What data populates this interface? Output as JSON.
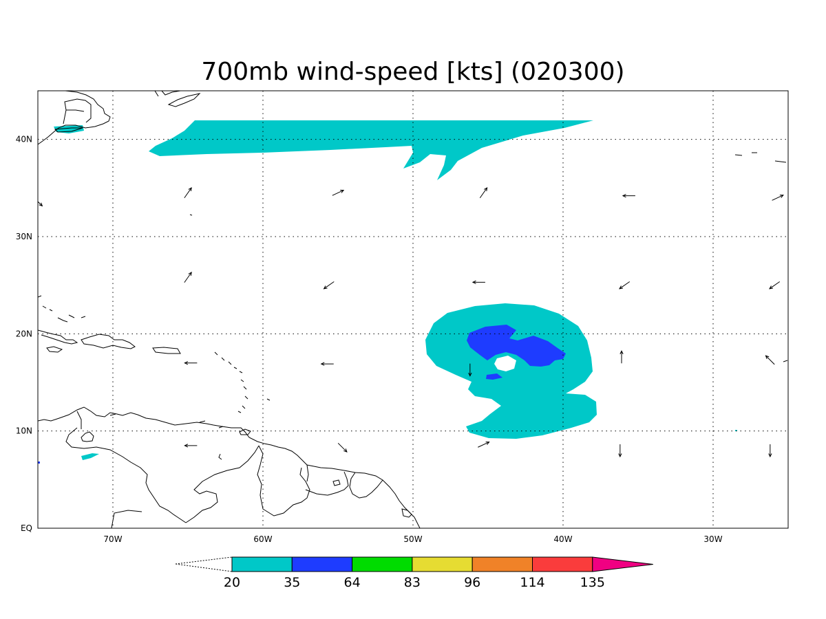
{
  "title": "700mb wind-speed [kts] (020300)",
  "map": {
    "lon_range": [
      -75,
      -25
    ],
    "lat_range": [
      0,
      45
    ],
    "lon_ticks": [
      {
        "value": -70,
        "label": "70W"
      },
      {
        "value": -60,
        "label": "60W"
      },
      {
        "value": -50,
        "label": "50W"
      },
      {
        "value": -40,
        "label": "40W"
      },
      {
        "value": -30,
        "label": "30W"
      }
    ],
    "lat_ticks": [
      {
        "value": 0,
        "label": "EQ"
      },
      {
        "value": 10,
        "label": "10N"
      },
      {
        "value": 20,
        "label": "20N"
      },
      {
        "value": 30,
        "label": "30N"
      },
      {
        "value": 40,
        "label": "40N"
      }
    ],
    "grid": true,
    "grid_style": "dotted"
  },
  "colorbar": {
    "levels": [
      "20",
      "35",
      "64",
      "83",
      "96",
      "114",
      "135"
    ],
    "colors": [
      "#00c8c8",
      "#1e3cff",
      "#00dc00",
      "#e6dc32",
      "#f08228",
      "#fa3c3c",
      "#f00082"
    ]
  },
  "wind_vectors": [
    {
      "lon": -65,
      "lat": 34.5,
      "dir": "ne"
    },
    {
      "lon": -55,
      "lat": 34.5,
      "dir": "ene"
    },
    {
      "lon": -45.3,
      "lat": 34.5,
      "dir": "ne"
    },
    {
      "lon": -35.6,
      "lat": 34.2,
      "dir": "w"
    },
    {
      "lon": -25.7,
      "lat": 34.0,
      "dir": "ene"
    },
    {
      "lon": -65,
      "lat": 25.8,
      "dir": "ne"
    },
    {
      "lon": -55.6,
      "lat": 25.0,
      "dir": "sw"
    },
    {
      "lon": -45.6,
      "lat": 25.3,
      "dir": "w"
    },
    {
      "lon": -35.9,
      "lat": 25.0,
      "dir": "sw"
    },
    {
      "lon": -25.9,
      "lat": 25.0,
      "dir": "sw"
    },
    {
      "lon": -64.8,
      "lat": 17.0,
      "dir": "w"
    },
    {
      "lon": -55.7,
      "lat": 16.9,
      "dir": "w"
    },
    {
      "lon": -46.2,
      "lat": 16.3,
      "dir": "s"
    },
    {
      "lon": -36.1,
      "lat": 17.6,
      "dir": "n"
    },
    {
      "lon": -26.2,
      "lat": 17.3,
      "dir": "nw"
    },
    {
      "lon": -64.8,
      "lat": 8.5,
      "dir": "w"
    },
    {
      "lon": -54.7,
      "lat": 8.3,
      "dir": "se"
    },
    {
      "lon": -45.3,
      "lat": 8.6,
      "dir": "ene"
    },
    {
      "lon": -36.2,
      "lat": 8.0,
      "dir": "s"
    },
    {
      "lon": -26.2,
      "lat": 8.0,
      "dir": "s"
    },
    {
      "lon": -75,
      "lat": 33.6,
      "dir": "se"
    }
  ]
}
